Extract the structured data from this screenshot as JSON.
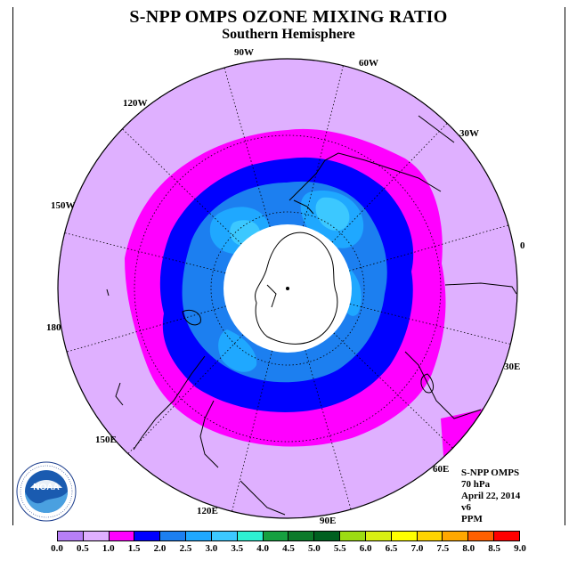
{
  "title": "S-NPP OMPS OZONE MIXING RATIO",
  "subtitle": "Southern Hemisphere",
  "longitude_labels": [
    "90W",
    "60W",
    "120W",
    "30W",
    "150W",
    "0",
    "180",
    "30E",
    "150E",
    "60E",
    "120E",
    "90E"
  ],
  "info": {
    "instrument": "S-NPP OMPS",
    "pressure": "70 hPa",
    "date": "April 22, 2014",
    "version": "v6",
    "units": "PPM"
  },
  "logo_text": "NOAA",
  "colorbar": {
    "ticks": [
      "0.0",
      "0.5",
      "1.0",
      "1.5",
      "2.0",
      "2.5",
      "3.0",
      "3.5",
      "4.0",
      "4.5",
      "5.0",
      "5.5",
      "6.0",
      "6.5",
      "7.0",
      "7.5",
      "8.0",
      "8.5",
      "9.0"
    ],
    "colors": [
      "#b77ff6",
      "#dfb0ff",
      "#ff00ff",
      "#0000ff",
      "#1c7ff0",
      "#1fa8ff",
      "#3cc8ff",
      "#2ef0d2",
      "#16a040",
      "#0c7a2a",
      "#006020",
      "#9cdc12",
      "#d8ef12",
      "#ffff00",
      "#ffd400",
      "#ffa800",
      "#ff6000",
      "#ff0000",
      "#8a5a32"
    ]
  },
  "map": {
    "contours": [
      {
        "range": "0.5-1.0",
        "color": "#dfb0ff"
      },
      {
        "range": "1.0-1.5",
        "color": "#ff00ff"
      },
      {
        "range": "1.5-2.0",
        "color": "#0000ff"
      },
      {
        "range": "2.0-2.5",
        "color": "#1c7ff0"
      },
      {
        "range": "2.5-3.0",
        "color": "#1fa8ff"
      },
      {
        "range": "3.0-3.5",
        "color": "#3cc8ff"
      }
    ],
    "no_data_color": "#ffffff"
  }
}
